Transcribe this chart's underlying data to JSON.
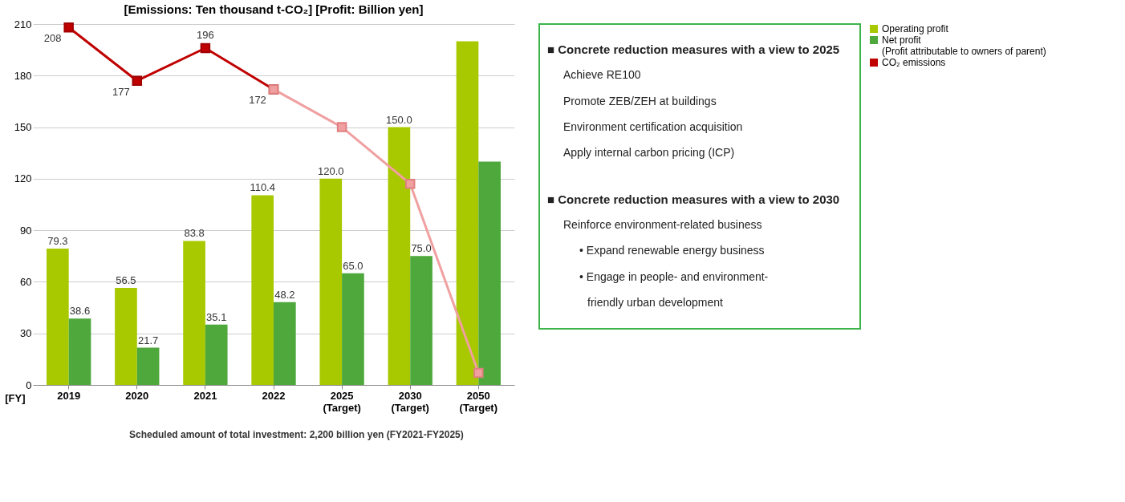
{
  "chart_data": [
    {
      "type": "bar",
      "title": "[Emissions: Ten thousand t-CO₂] [Profit: Billion yen]",
      "xlabel": "[FY]",
      "categories": [
        "2019",
        "2020",
        "2021",
        "2022",
        "2025 (Target)",
        "2030 (Target)",
        "2050 (Target)"
      ],
      "series": [
        {
          "name": "Operating profit",
          "color": "#a8c800",
          "values": [
            79.3,
            56.5,
            83.8,
            110.4,
            120.0,
            150.0,
            200
          ],
          "value_labels": [
            "79.3",
            "56.5",
            "83.8",
            "110.4",
            "120.0",
            "150.0",
            null
          ]
        },
        {
          "name": "Net profit (Profit attributable to owners of parent)",
          "color": "#4ea83c",
          "values": [
            38.6,
            21.7,
            35.1,
            48.2,
            65.0,
            75.0,
            130
          ],
          "value_labels": [
            "38.6",
            "21.7",
            "35.1",
            "48.2",
            "65.0",
            "75.0",
            null
          ]
        },
        {
          "name": "CO₂ emissions",
          "type": "line",
          "color": "#c00000",
          "values": [
            208,
            177,
            196,
            172,
            null,
            null,
            null
          ],
          "value_labels": [
            "208",
            "177",
            "196",
            "172",
            null,
            null,
            null
          ]
        },
        {
          "type": "line",
          "color": "#f0a0a0",
          "values": [
            null,
            null,
            null,
            172,
            150,
            117,
            7
          ]
        }
      ],
      "ylim": [
        0,
        210
      ],
      "yticks": [
        0,
        30,
        60,
        90,
        120,
        150,
        180,
        210
      ],
      "grid": "y",
      "legend": "right",
      "marker": "square",
      "annotations": [
        "Scheduled amount of total investment: 2,200 billion yen (FY2021-FY2025)"
      ]
    },
    {
      "type": "other",
      "annotations": [
        "■  Concrete reduction measures with a view to 2025",
        "Achieve RE100",
        "Promote ZEB/ZEH at buildings",
        "Environment certification acquisition",
        "Apply internal carbon pricing (ICP)",
        "■  Concrete reduction measures with a view to 2030",
        "Reinforce environment-related business",
        "• Expand renewable energy business",
        "• Engage in people- and environment-",
        "friendly urban development"
      ]
    }
  ]
}
